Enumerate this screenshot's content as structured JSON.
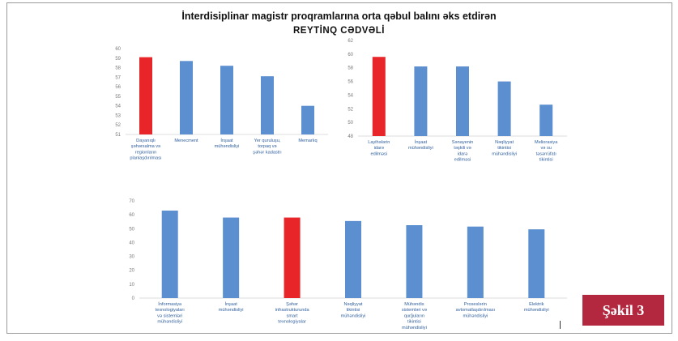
{
  "title": "İnterdisiplinar magistr proqramlarına orta qəbul balını əks etdirən",
  "subtitle": "REYTİNQ CƏDVƏLİ",
  "figure_label": "Şəkil 3",
  "colors": {
    "highlight": "#e8262a",
    "bar": "#5b8fd0",
    "axis": "#d0d0d0",
    "tick": "#7a7a7a"
  },
  "chart_data": [
    {
      "type": "bar",
      "categories": [
        "Dayanıqlı şəhərsalma və regionların planlaşdırılması",
        "Menecment",
        "İnşaat mühəndisliyi",
        "Yer quruluşu, torpaq və şəhər kadastrı",
        "Memarlıq"
      ],
      "values": [
        59.1,
        58.7,
        58.2,
        57.1,
        54.0
      ],
      "highlight": [
        0
      ],
      "ylim": [
        51,
        60
      ],
      "yticks": [
        "51",
        "52",
        "53",
        "54",
        "55",
        "56",
        "57",
        "58",
        "59",
        "60"
      ]
    },
    {
      "type": "bar",
      "categories": [
        "Layihələrin idarə edilməsi",
        "İnşaat mühəndisliyi",
        "Sənayenin təşkili və idarə edilməsi",
        "Nəqliyyat tikintisi mühəndisliyi",
        "Meliorasiya və su təsərrüfatı tikintisi"
      ],
      "values": [
        59.6,
        58.2,
        58.2,
        56.0,
        52.6
      ],
      "highlight": [
        0
      ],
      "ylim": [
        48,
        62
      ],
      "yticks": [
        "48",
        "50",
        "52",
        "54",
        "56",
        "58",
        "60",
        "62"
      ]
    },
    {
      "type": "bar",
      "categories": [
        "İnformasiya texnologiyaları və sistemləri mühəndisliyi",
        "İnşaat mühəndisliyi",
        "Şəhər infrastrukturunda smart texnologiyalar",
        "Nəqliyyat tikintisi mühəndisliyi",
        "Mühəndis sistemləri və qurğuların tikintisi mühəndisliyi",
        "Proseslərin avtomatlaşdırılması mühəndisliyi",
        "Elektrik mühəndisliyi"
      ],
      "values": [
        63,
        58,
        58,
        55.5,
        52.5,
        51.5,
        49.5
      ],
      "highlight": [
        2
      ],
      "ylim": [
        0,
        70
      ],
      "yticks": [
        "0",
        "10",
        "20",
        "30",
        "40",
        "50",
        "60",
        "70"
      ]
    }
  ]
}
